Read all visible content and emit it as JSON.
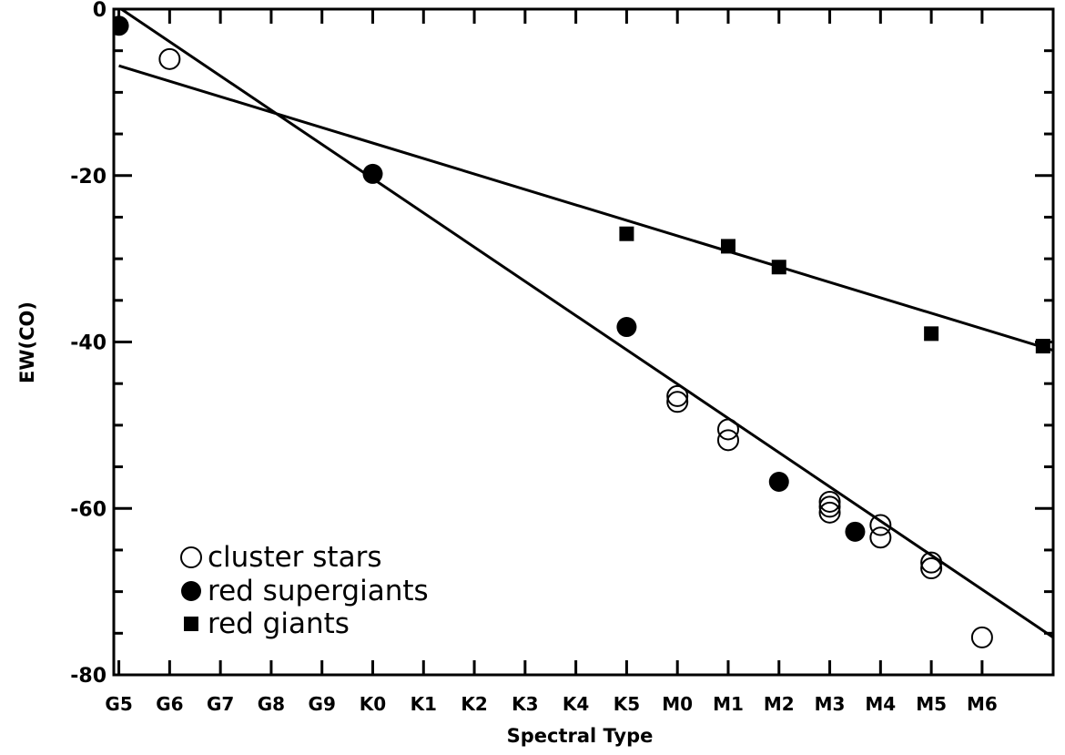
{
  "chart_data": {
    "type": "scatter",
    "title": "",
    "xlabel": "Spectral Type",
    "ylabel": "EW(CO)",
    "categories": [
      "G5",
      "G6",
      "G7",
      "G8",
      "G9",
      "K0",
      "K1",
      "K2",
      "K3",
      "K4",
      "K5",
      "M0",
      "M1",
      "M2",
      "M3",
      "M4",
      "M5",
      "M6"
    ],
    "xlim": [
      -0.1,
      18.4
    ],
    "ylim": [
      -80,
      0
    ],
    "yticks": [
      0,
      -20,
      -40,
      -60,
      -80
    ],
    "ytick_labels": [
      "0",
      "-20",
      "-40",
      "-60",
      "-80"
    ],
    "legend_placement": "bottom-left",
    "series": [
      {
        "name": "cluster stars",
        "marker": "open-circle",
        "points": [
          [
            1,
            -6
          ],
          [
            11,
            -46.5
          ],
          [
            11,
            -47.2
          ],
          [
            12,
            -50.5
          ],
          [
            12,
            -51.8
          ],
          [
            14,
            -59.2
          ],
          [
            14,
            -59.8
          ],
          [
            14,
            -60.5
          ],
          [
            15,
            -62
          ],
          [
            15,
            -63.5
          ],
          [
            16,
            -66.5
          ],
          [
            16,
            -67.2
          ],
          [
            17,
            -75.5
          ]
        ]
      },
      {
        "name": "red supergiants",
        "marker": "filled-circle",
        "points": [
          [
            0,
            -2
          ],
          [
            5,
            -19.8
          ],
          [
            10,
            -38.2
          ],
          [
            13,
            -56.8
          ],
          [
            14.5,
            -62.8
          ]
        ]
      },
      {
        "name": "red giants",
        "marker": "filled-square",
        "points": [
          [
            10,
            -27
          ],
          [
            12,
            -28.5
          ],
          [
            13,
            -31
          ],
          [
            16,
            -39
          ],
          [
            18.2,
            -40.5
          ]
        ]
      }
    ],
    "fit_lines": [
      {
        "x": [
          0,
          18.4
        ],
        "y": [
          0.2,
          -75.5
        ]
      },
      {
        "x": [
          0,
          18.4
        ],
        "y": [
          -6.8,
          -41
        ]
      }
    ]
  }
}
